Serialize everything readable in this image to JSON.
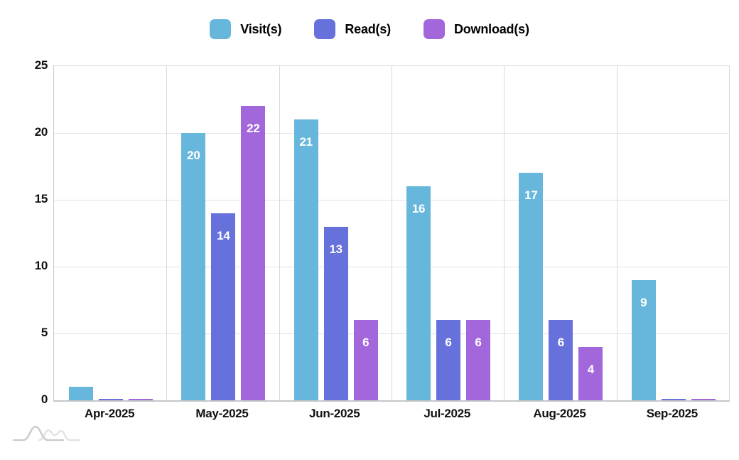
{
  "chart_data": {
    "type": "bar",
    "title": "",
    "xlabel": "",
    "ylabel": "",
    "categories": [
      "Apr-2025",
      "May-2025",
      "Jun-2025",
      "Jul-2025",
      "Aug-2025",
      "Sep-2025"
    ],
    "series": [
      {
        "key": "visits",
        "name": "Visit(s)",
        "color": "#67B7DC",
        "values": [
          1,
          20,
          21,
          16,
          17,
          9
        ]
      },
      {
        "key": "reads",
        "name": "Read(s)",
        "color": "#6771DC",
        "values": [
          0,
          14,
          13,
          6,
          6,
          0
        ]
      },
      {
        "key": "downloads",
        "name": "Download(s)",
        "color": "#A367DC",
        "values": [
          0,
          22,
          6,
          6,
          4,
          0
        ]
      }
    ],
    "ylim": [
      0,
      25
    ],
    "yticks": [
      0,
      5,
      10,
      15,
      20,
      25
    ],
    "grid": true,
    "legend_position": "top",
    "value_label_color": "#ffffff",
    "value_label_min_value": 4
  },
  "style_colors": {
    "gridline": "#e2e2e2",
    "axis_text": "#111111",
    "watermark_dark": "#cdcdcd",
    "watermark_light": "#e3e3e3"
  },
  "watermark_icon": "amcharts-logo"
}
